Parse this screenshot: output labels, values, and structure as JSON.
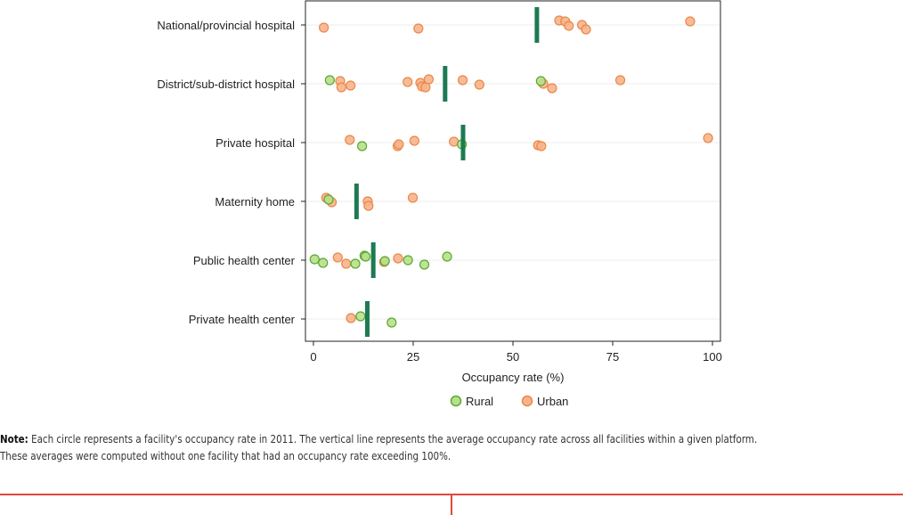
{
  "chart_data": {
    "type": "scatter",
    "title": "",
    "xlabel": "Occupancy rate (%)",
    "ylabel": "",
    "xlim": [
      -2,
      102
    ],
    "xticks": [
      0,
      25,
      50,
      75,
      100
    ],
    "grid": true,
    "legend_position": "bottom",
    "categories": [
      "National/provincial hospital",
      "District/sub-district hospital",
      "Private hospital",
      "Maternity home",
      "Public health center",
      "Private health center"
    ],
    "series": [
      {
        "name": "Rural",
        "color": "#b7e08a",
        "stroke": "#5aa832",
        "points": [
          {
            "category": "District/sub-district hospital",
            "x": 4.1
          },
          {
            "category": "District/sub-district hospital",
            "x": 57.0
          },
          {
            "category": "Private hospital",
            "x": 12.2
          },
          {
            "category": "Private hospital",
            "x": 37.2
          },
          {
            "category": "Maternity home",
            "x": 3.8
          },
          {
            "category": "Public health center",
            "x": 0.3
          },
          {
            "category": "Public health center",
            "x": 2.4
          },
          {
            "category": "Public health center",
            "x": 10.5
          },
          {
            "category": "Public health center",
            "x": 12.8
          },
          {
            "category": "Public health center",
            "x": 13.1
          },
          {
            "category": "Public health center",
            "x": 17.9
          },
          {
            "category": "Public health center",
            "x": 23.7
          },
          {
            "category": "Public health center",
            "x": 27.8
          },
          {
            "category": "Public health center",
            "x": 33.5
          },
          {
            "category": "Private health center",
            "x": 11.8
          },
          {
            "category": "Private health center",
            "x": 19.6
          }
        ]
      },
      {
        "name": "Urban",
        "color": "#f8b48c",
        "stroke": "#e98848",
        "points": [
          {
            "category": "National/provincial hospital",
            "x": 2.6
          },
          {
            "category": "National/provincial hospital",
            "x": 26.3
          },
          {
            "category": "National/provincial hospital",
            "x": 61.6
          },
          {
            "category": "National/provincial hospital",
            "x": 63.1
          },
          {
            "category": "National/provincial hospital",
            "x": 64.0
          },
          {
            "category": "National/provincial hospital",
            "x": 67.3
          },
          {
            "category": "National/provincial hospital",
            "x": 68.3
          },
          {
            "category": "National/provincial hospital",
            "x": 94.4
          },
          {
            "category": "District/sub-district hospital",
            "x": 6.7
          },
          {
            "category": "District/sub-district hospital",
            "x": 7.0
          },
          {
            "category": "District/sub-district hospital",
            "x": 9.3
          },
          {
            "category": "District/sub-district hospital",
            "x": 23.6
          },
          {
            "category": "District/sub-district hospital",
            "x": 26.8
          },
          {
            "category": "District/sub-district hospital",
            "x": 27.2
          },
          {
            "category": "District/sub-district hospital",
            "x": 28.1
          },
          {
            "category": "District/sub-district hospital",
            "x": 28.9
          },
          {
            "category": "District/sub-district hospital",
            "x": 37.4
          },
          {
            "category": "District/sub-district hospital",
            "x": 41.6
          },
          {
            "category": "District/sub-district hospital",
            "x": 57.6
          },
          {
            "category": "District/sub-district hospital",
            "x": 59.8
          },
          {
            "category": "District/sub-district hospital",
            "x": 76.9
          },
          {
            "category": "Private hospital",
            "x": 9.1
          },
          {
            "category": "Private hospital",
            "x": 21.1
          },
          {
            "category": "Private hospital",
            "x": 21.4
          },
          {
            "category": "Private hospital",
            "x": 25.3
          },
          {
            "category": "Private hospital",
            "x": 35.2
          },
          {
            "category": "Private hospital",
            "x": 56.3
          },
          {
            "category": "Private hospital",
            "x": 57.1
          },
          {
            "category": "Private hospital",
            "x": 98.9
          },
          {
            "category": "Maternity home",
            "x": 3.2
          },
          {
            "category": "Maternity home",
            "x": 4.6
          },
          {
            "category": "Maternity home",
            "x": 13.6
          },
          {
            "category": "Maternity home",
            "x": 13.8
          },
          {
            "category": "Maternity home",
            "x": 24.9
          },
          {
            "category": "Public health center",
            "x": 6.1
          },
          {
            "category": "Public health center",
            "x": 8.2
          },
          {
            "category": "Public health center",
            "x": 17.7
          },
          {
            "category": "Public health center",
            "x": 21.2
          },
          {
            "category": "Private health center",
            "x": 9.4
          }
        ]
      }
    ],
    "averages": {
      "name": "Average occupancy rate",
      "color": "#1d7a52",
      "values": [
        {
          "category": "National/provincial hospital",
          "x": 56.0
        },
        {
          "category": "District/sub-district hospital",
          "x": 33.0
        },
        {
          "category": "Private hospital",
          "x": 37.5
        },
        {
          "category": "Maternity home",
          "x": 10.8
        },
        {
          "category": "Public health center",
          "x": 15.0
        },
        {
          "category": "Private health center",
          "x": 13.5
        }
      ]
    }
  },
  "note": {
    "heading": "Note:",
    "text": "Each circle represents a facility's occupancy rate in 2011. The vertical line represents the average occupancy rate across all facilities within a given platform. These averages were computed without one facility that had an occupancy rate exceeding 100%."
  },
  "colors": {
    "footer_rule": "#e2483b",
    "plot_border": "#222222",
    "gridline": "#eeeeee"
  }
}
